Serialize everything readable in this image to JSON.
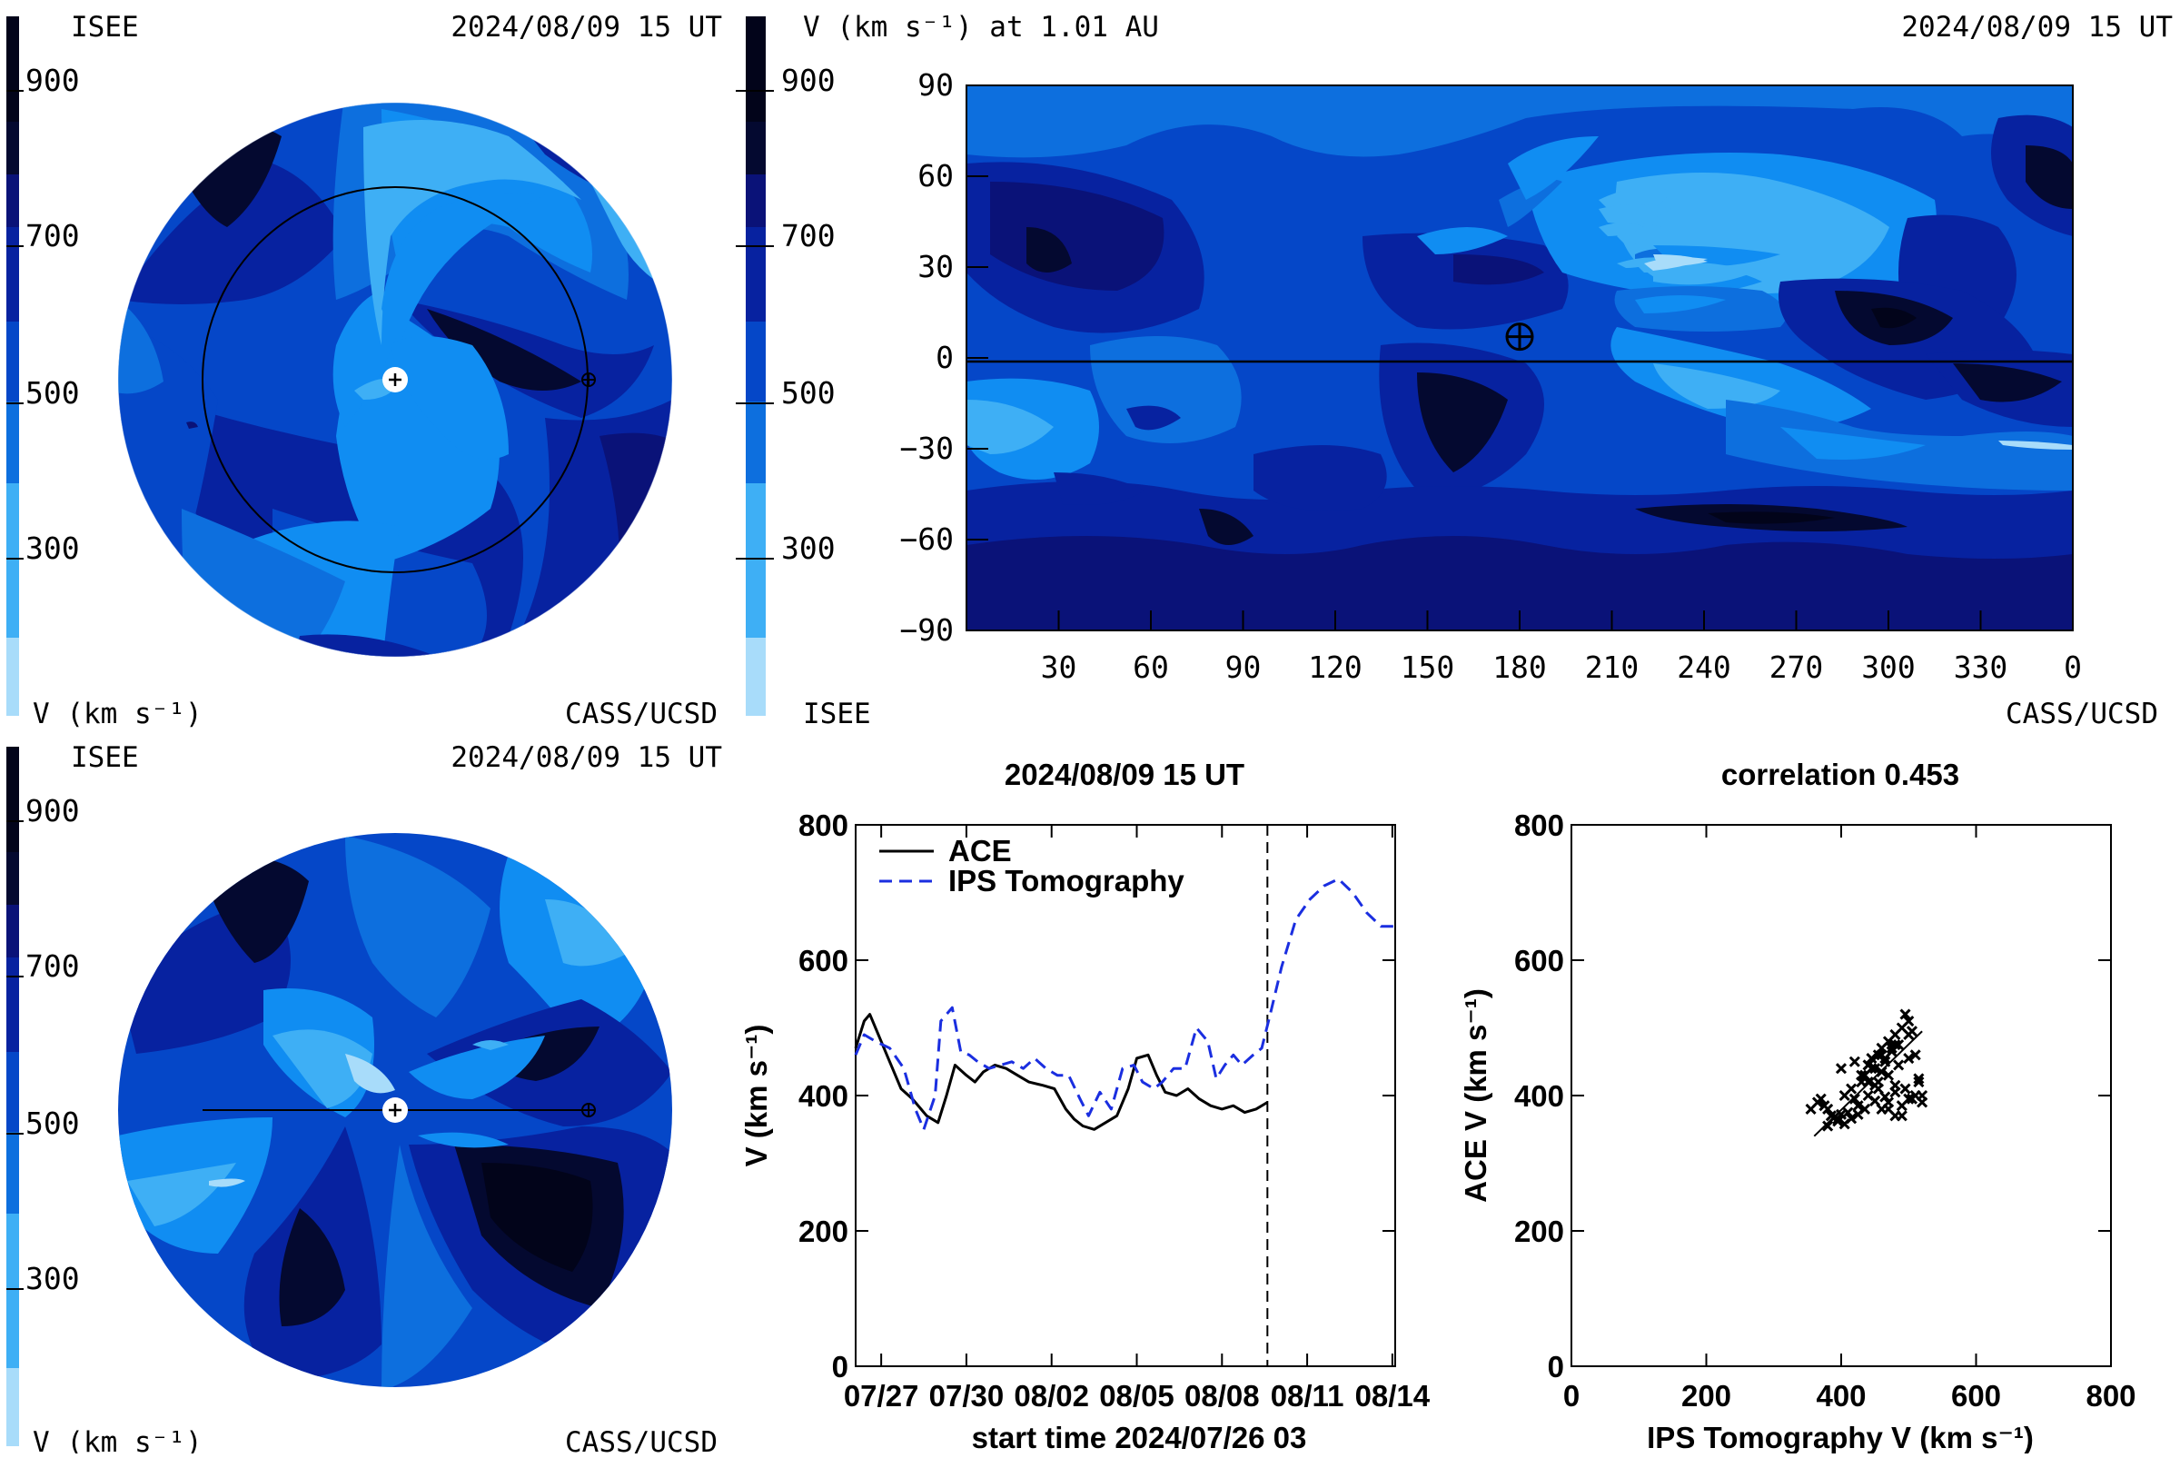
{
  "colors": {
    "levels": [
      "#a8dcfa",
      "#3eaff5",
      "#108df2",
      "#0d6fde",
      "#0547c8",
      "#0722a0",
      "#0a1278",
      "#040930",
      "#02041a"
    ],
    "line": "#000000",
    "ips": "#1a2ee0"
  },
  "colorbar": {
    "tick_labels": [
      "900",
      "700",
      "500",
      "300"
    ],
    "tick_values": [
      900,
      700,
      500,
      300
    ],
    "unit_label": "V (km s⁻¹)"
  },
  "panel_ecliptic": {
    "org_left": "ISEE",
    "datetime": "2024/08/09 15 UT",
    "credit": "CASS/UCSD",
    "unit_label": "V (km s⁻¹)"
  },
  "panel_meridional": {
    "org_left": "ISEE",
    "datetime": "2024/08/09 15 UT",
    "credit": "CASS/UCSD",
    "unit_label": "V (km s⁻¹)"
  },
  "panel_map": {
    "title": "V (km s⁻¹) at 1.01 AU",
    "datetime": "2024/08/09 15 UT",
    "org_left": "ISEE",
    "credit": "CASS/UCSD",
    "x_ticks": [
      "30",
      "60",
      "90",
      "120",
      "150",
      "180",
      "210",
      "240",
      "270",
      "300",
      "330",
      "0"
    ],
    "y_ticks": [
      "90",
      "60",
      "30",
      "0",
      "−30",
      "−60",
      "−90"
    ],
    "y_values": [
      90,
      60,
      30,
      0,
      -30,
      -60,
      -90
    ],
    "earth_marker": {
      "longitude": 180,
      "latitude": 7
    }
  },
  "chart_data": [
    {
      "type": "line",
      "title": "2024/08/09 15 UT",
      "xlabel": "start time 2024/07/26 03",
      "ylabel": "V (km s⁻¹)",
      "ylim": [
        0,
        800
      ],
      "xlim": [
        0.0,
        19.0
      ],
      "x_tick_labels": [
        "07/27",
        "07/30",
        "08/02",
        "08/05",
        "08/08",
        "08/11",
        "08/14"
      ],
      "x_tick_values": [
        0.9,
        3.9,
        6.9,
        9.9,
        12.9,
        15.9,
        18.9
      ],
      "y_tick_values": [
        0,
        200,
        400,
        600,
        800
      ],
      "y_tick_labels": [
        "0",
        "200",
        "400",
        "600",
        "800"
      ],
      "current_time_marker": 14.5,
      "legend_position": "top-left",
      "series": [
        {
          "name": "ACE",
          "style": "solid",
          "color": "#000000",
          "x": [
            0.0,
            0.3,
            0.5,
            0.8,
            1.2,
            1.6,
            2.0,
            2.5,
            2.9,
            3.2,
            3.5,
            3.9,
            4.2,
            4.5,
            4.9,
            5.3,
            5.7,
            6.1,
            6.6,
            7.0,
            7.4,
            7.7,
            8.0,
            8.4,
            8.8,
            9.2,
            9.6,
            9.9,
            10.3,
            10.6,
            10.9,
            11.3,
            11.7,
            12.1,
            12.5,
            12.9,
            13.3,
            13.7,
            14.1,
            14.5
          ],
          "y": [
            470,
            510,
            520,
            490,
            450,
            410,
            395,
            370,
            360,
            400,
            445,
            430,
            420,
            435,
            445,
            440,
            430,
            420,
            415,
            410,
            380,
            365,
            355,
            350,
            360,
            370,
            410,
            455,
            460,
            430,
            405,
            400,
            410,
            395,
            385,
            380,
            385,
            375,
            380,
            390
          ]
        },
        {
          "name": "IPS Tomography",
          "style": "dashed",
          "color": "#1a2ee0",
          "x": [
            0.0,
            0.3,
            0.7,
            1.2,
            1.7,
            2.1,
            2.4,
            2.8,
            3.0,
            3.4,
            3.7,
            4.0,
            4.3,
            4.7,
            5.1,
            5.5,
            5.9,
            6.3,
            6.7,
            7.1,
            7.5,
            7.9,
            8.2,
            8.6,
            9.0,
            9.4,
            9.8,
            10.1,
            10.5,
            10.8,
            11.2,
            11.6,
            12.0,
            12.4,
            12.7,
            13.0,
            13.3,
            13.6,
            14.0,
            14.3,
            14.6,
            15.0,
            15.5,
            16.0,
            16.5,
            17.0,
            17.5,
            18.0,
            18.5,
            19.0
          ],
          "y": [
            460,
            490,
            480,
            470,
            440,
            380,
            350,
            400,
            510,
            530,
            465,
            460,
            450,
            440,
            445,
            450,
            440,
            455,
            440,
            430,
            430,
            395,
            370,
            405,
            380,
            440,
            445,
            420,
            410,
            420,
            440,
            440,
            500,
            480,
            425,
            445,
            460,
            445,
            460,
            470,
            520,
            590,
            660,
            690,
            710,
            720,
            700,
            670,
            650,
            650
          ]
        }
      ]
    },
    {
      "type": "scatter",
      "title": "correlation 0.453",
      "xlabel": "IPS Tomography V (km s⁻¹)",
      "ylabel": "ACE V (km s⁻¹)",
      "xlim": [
        0,
        800
      ],
      "ylim": [
        0,
        800
      ],
      "x_tick_values": [
        0,
        200,
        400,
        600,
        800
      ],
      "x_tick_labels": [
        "0",
        "200",
        "400",
        "600",
        "800"
      ],
      "y_tick_values": [
        0,
        200,
        400,
        600,
        800
      ],
      "y_tick_labels": [
        "0",
        "200",
        "400",
        "600",
        "800"
      ],
      "fit_line": {
        "x": [
          360,
          520
        ],
        "y": [
          340,
          495
        ]
      },
      "series": [
        {
          "x": [
            355,
            365,
            375,
            385,
            395,
            400,
            405,
            415,
            420,
            430,
            435,
            440,
            445,
            450,
            455,
            460,
            465,
            470,
            475,
            480,
            485,
            490,
            495,
            500,
            505,
            510,
            515,
            520,
            370,
            380,
            390,
            410,
            425,
            440,
            450,
            460,
            470,
            480,
            490,
            500,
            430,
            445,
            455,
            465,
            475,
            380,
            395,
            405,
            415,
            425,
            435,
            450,
            465,
            480,
            495,
            510,
            520,
            400,
            420,
            440,
            460,
            480,
            500,
            440,
            455,
            470,
            485,
            500,
            515,
            470,
            490,
            505,
            480,
            460
          ],
          "y": [
            380,
            390,
            385,
            370,
            365,
            372,
            400,
            410,
            395,
            420,
            430,
            445,
            455,
            440,
            460,
            470,
            455,
            480,
            465,
            490,
            475,
            500,
            520,
            510,
            495,
            460,
            425,
            400,
            395,
            380,
            368,
            375,
            385,
            400,
            415,
            380,
            390,
            370,
            385,
            395,
            430,
            440,
            420,
            450,
            470,
            355,
            362,
            358,
            366,
            372,
            380,
            392,
            398,
            405,
            410,
            400,
            390,
            440,
            450,
            445,
            460,
            475,
            490,
            420,
            410,
            430,
            445,
            455,
            420,
            380,
            370,
            395,
            415,
            435
          ]
        }
      ]
    }
  ]
}
